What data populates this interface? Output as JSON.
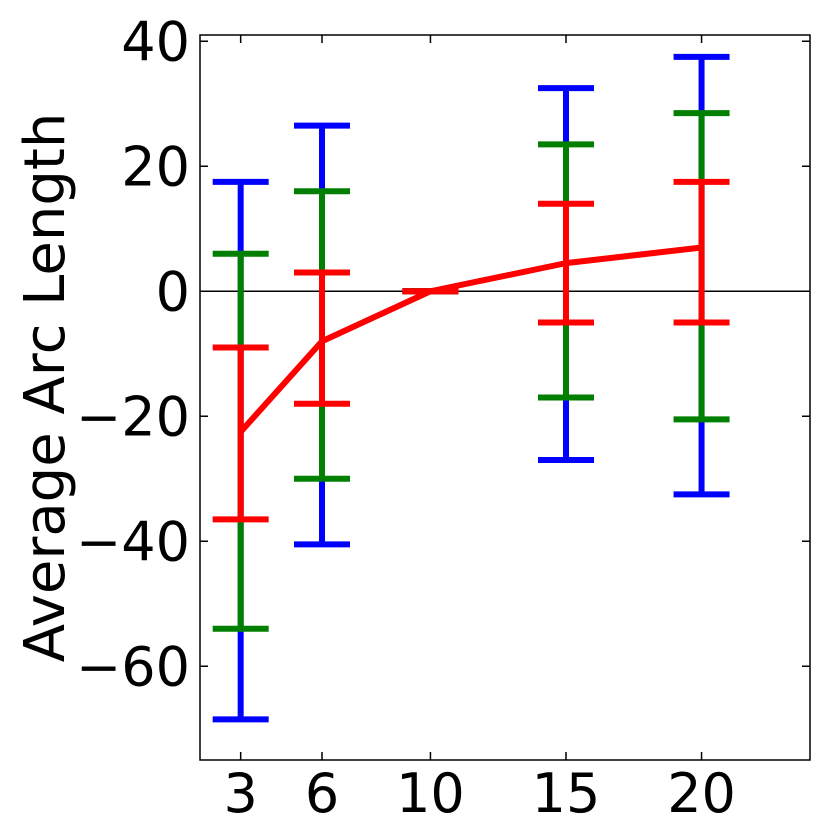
{
  "chart_data": {
    "type": "line",
    "title": "",
    "xlabel": "",
    "ylabel": "Average Arc Length",
    "x": [
      3,
      6,
      10,
      15,
      20
    ],
    "xticks": [
      3,
      6,
      10,
      15,
      20
    ],
    "yticks": [
      40,
      20,
      0,
      -20,
      -40,
      -60
    ],
    "xlim": [
      1.5,
      24
    ],
    "ylim": [
      -75,
      41
    ],
    "zero_line": true,
    "grid": false,
    "legend": "none",
    "series": [
      {
        "color": "#ff0000",
        "mean": [
          -22.5,
          -8,
          0,
          4.5,
          7
        ]
      }
    ],
    "error_bars": [
      {
        "color": "#0000ff",
        "lower": [
          -68.5,
          -40.5,
          0,
          -27,
          -32.5
        ],
        "upper": [
          17.5,
          26.5,
          0,
          32.5,
          37.5
        ]
      },
      {
        "color": "#007f00",
        "lower": [
          -54,
          -30,
          0,
          -17,
          -20.5
        ],
        "upper": [
          6,
          16,
          0,
          23.5,
          28.5
        ]
      },
      {
        "color": "#ff0000",
        "lower": [
          -36.5,
          -18,
          0,
          -5,
          -5
        ],
        "upper": [
          -9,
          3,
          0,
          14,
          17.5
        ]
      }
    ]
  }
}
